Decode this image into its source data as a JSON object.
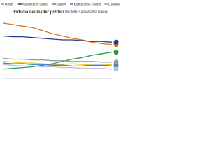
{
  "chart_data": {
    "type": "line",
    "title": "Fiducia nei leader politici",
    "subtitle": "(% molta + abbastanza fiducia)",
    "categories": [
      null,
      null,
      null,
      null,
      null,
      null,
      null,
      null,
      null,
      null,
      null,
      null
    ],
    "ylim": [
      0,
      80
    ],
    "series": [
      {
        "name": "Renzi",
        "color": "#e8731a",
        "values": [
          72,
          70,
          68,
          66,
          62,
          58,
          55,
          52,
          50,
          47,
          45,
          44
        ]
      },
      {
        "name": "Napolitano",
        "color": "#1f3f8f",
        "values": [
          55,
          54,
          54,
          53,
          52,
          51,
          50,
          50,
          49,
          48,
          48,
          47
        ]
      },
      {
        "name": "Grillo",
        "color": "#f0c419",
        "values": [
          22,
          21,
          20,
          20,
          19,
          18,
          18,
          19,
          18,
          17,
          17,
          18
        ]
      },
      {
        "name": "Salvini",
        "color": "#2e9e3e",
        "values": [
          12,
          13,
          14,
          15,
          17,
          19,
          22,
          25,
          27,
          30,
          32,
          34
        ]
      },
      {
        "name": "Berlusconi",
        "color": "#3b7dd8",
        "values": [
          20,
          19,
          19,
          18,
          18,
          17,
          17,
          16,
          16,
          17,
          17,
          16
        ]
      },
      {
        "name": "Alfano",
        "color": "#c7b9d9",
        "values": [
          18,
          17,
          16,
          16,
          15,
          15,
          14,
          14,
          13,
          13,
          13,
          12
        ]
      },
      {
        "name": "Landini",
        "color": "#9a9a9a",
        "values": [
          26,
          25,
          25,
          24,
          24,
          23,
          23,
          22,
          22,
          22,
          21,
          21
        ]
      }
    ]
  }
}
